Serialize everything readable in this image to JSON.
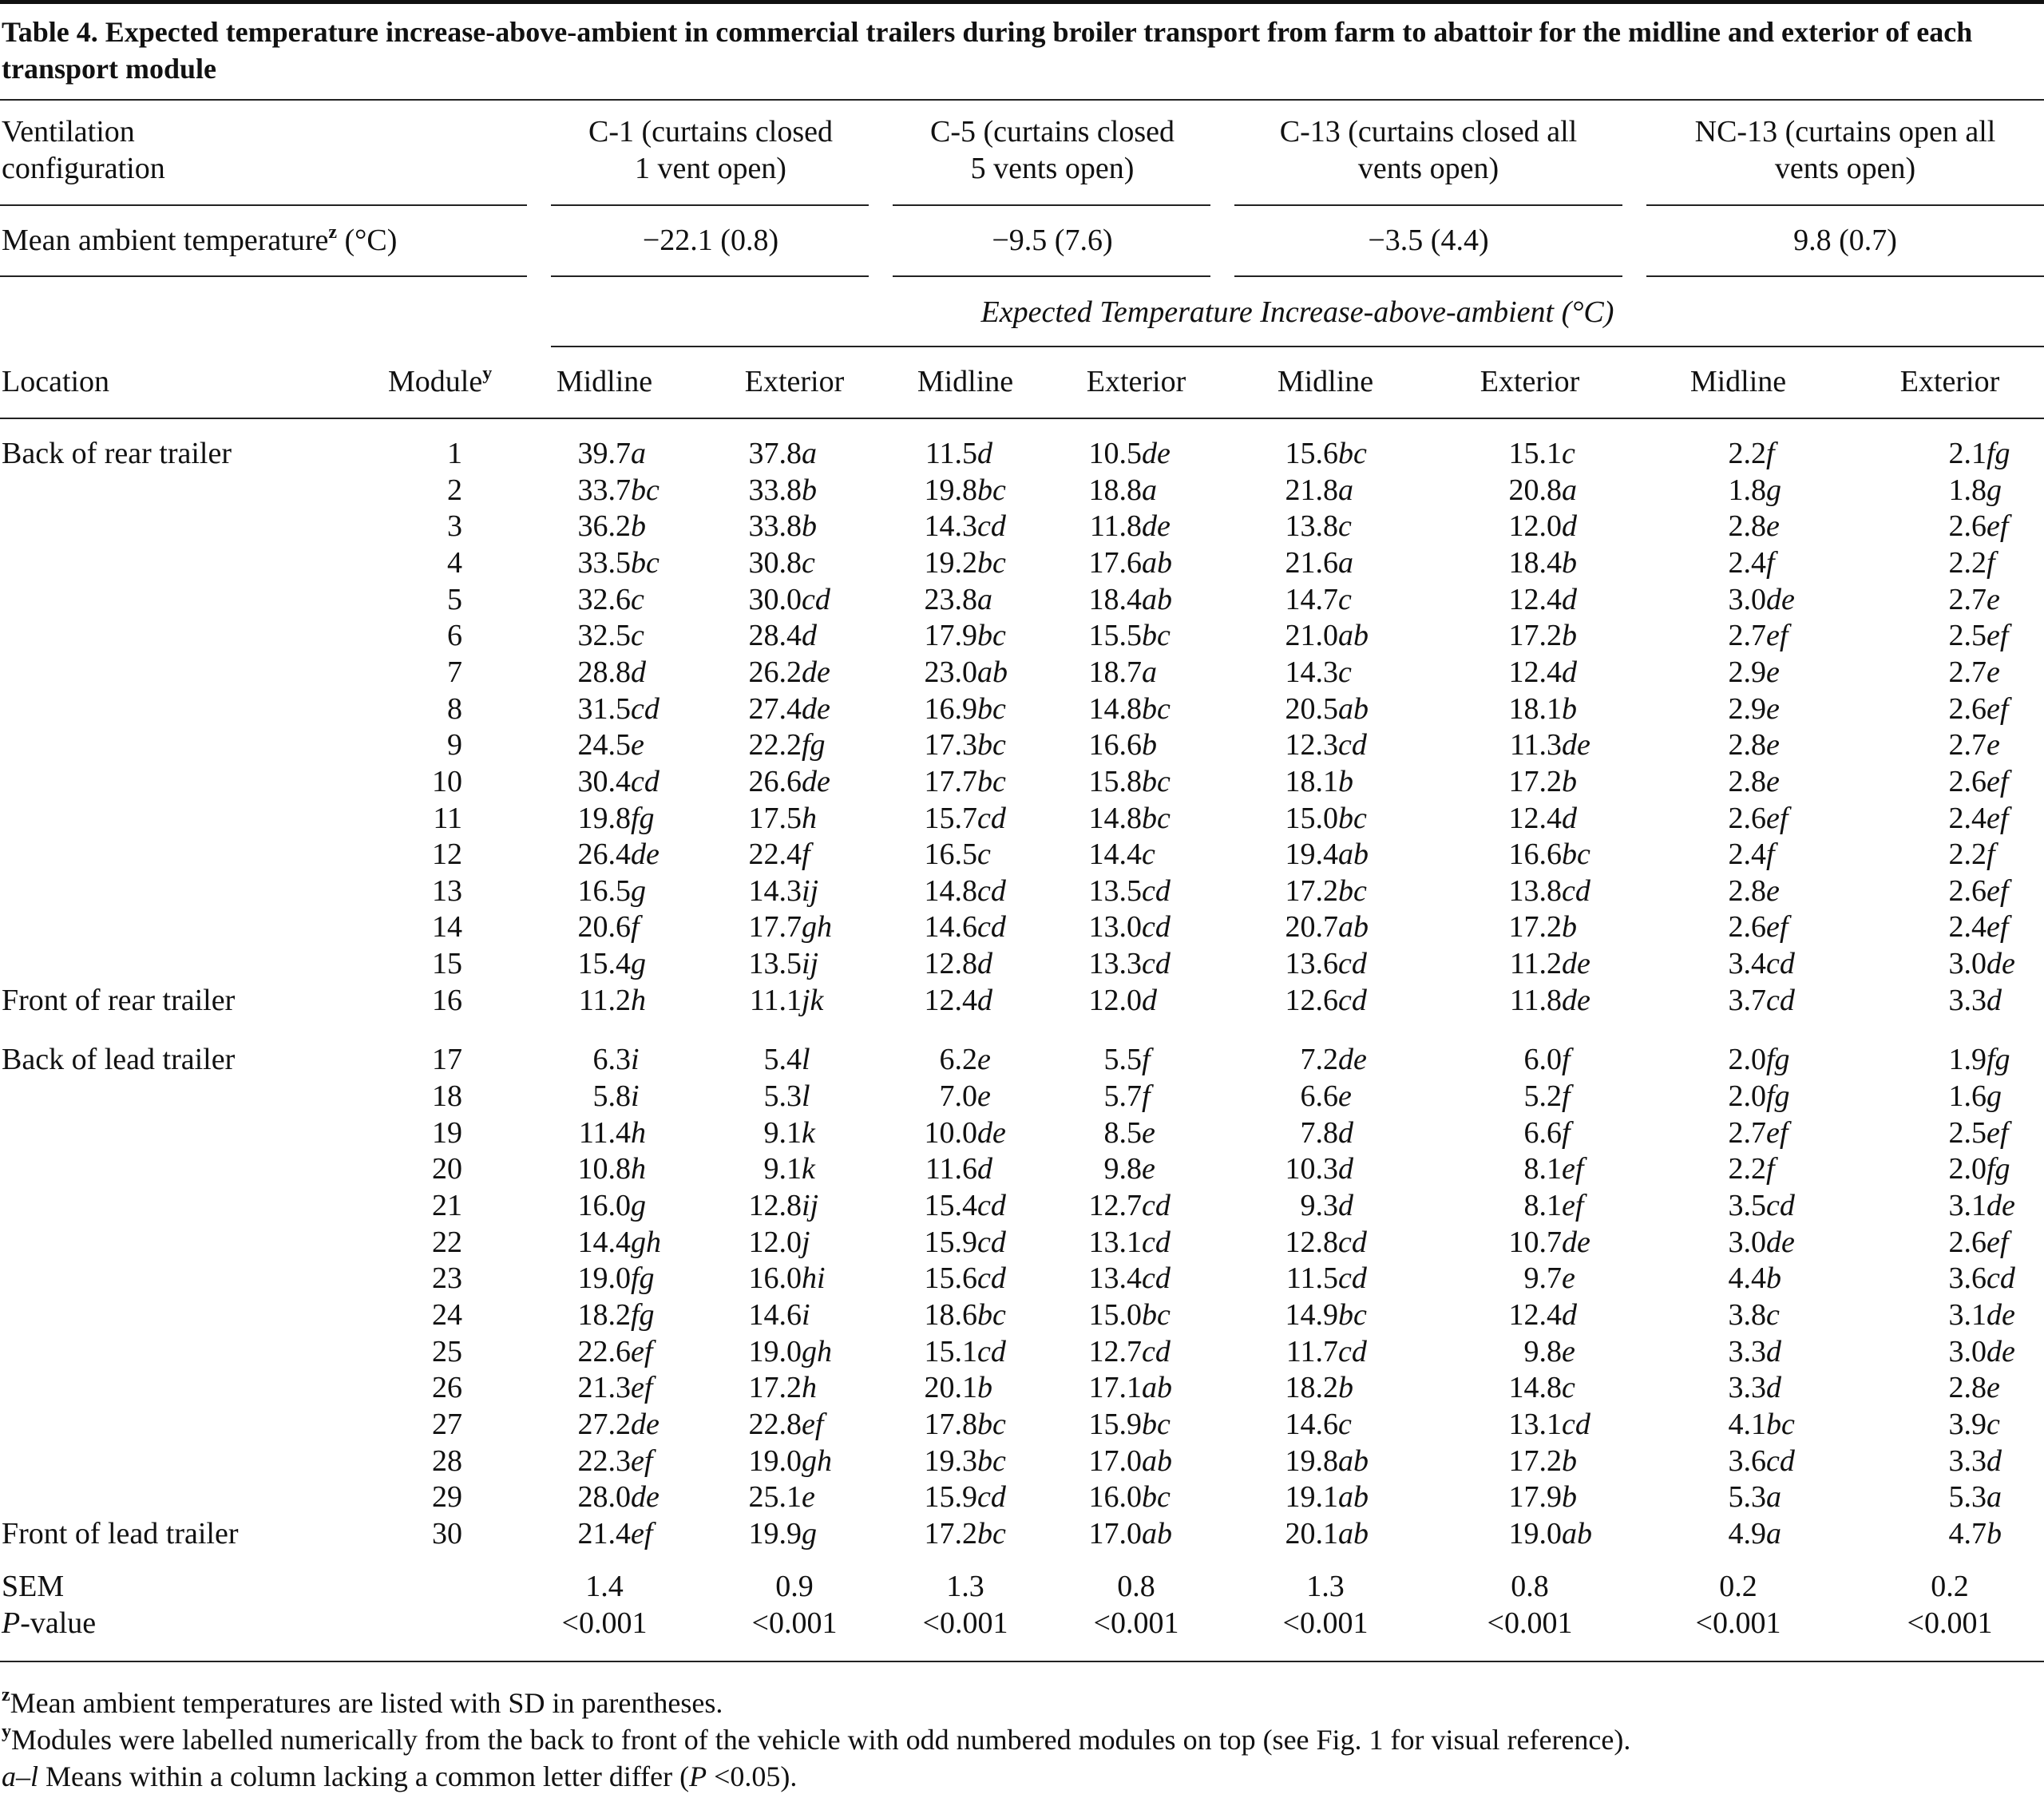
{
  "caption": "Table 4. Expected temperature increase-above-ambient in commercial trailers during broiler transport from farm to abattoir for the midline and exterior of each transport module",
  "header": {
    "ventilation_label": "Ventilation\nconfiguration",
    "configs": [
      "C-1 (curtains closed\n1 vent open)",
      "C-5 (curtains closed\n5 vents open)",
      "C-13 (curtains closed all\nvents open)",
      "NC-13 (curtains open all\nvents open)"
    ],
    "ambient_label": "Mean ambient temperature",
    "ambient_sup": "z",
    "ambient_unit": "(°C)",
    "ambient_values": [
      "−22.1 (0.8)",
      "−9.5 (7.6)",
      "−3.5 (4.4)",
      "9.8 (0.7)"
    ],
    "expected_label": "Expected Temperature Increase-above-ambient (°C)",
    "location_label": "Location",
    "module_label": "Module",
    "module_sup": "y",
    "midline_label": "Midline",
    "exterior_label": "Exterior"
  },
  "groups": [
    {
      "label": "Back of rear trailer",
      "start": 0
    },
    {
      "label": "Front of rear trailer",
      "start": 15
    },
    {
      "label": "Back of lead trailer",
      "start": 16
    },
    {
      "label": "Front of lead trailer",
      "start": 29
    }
  ],
  "rows": [
    {
      "module": "1",
      "cells": [
        [
          "39.7",
          "a"
        ],
        [
          "37.8",
          "a"
        ],
        [
          "11.5",
          "d"
        ],
        [
          "10.5",
          "de"
        ],
        [
          "15.6",
          "bc"
        ],
        [
          "15.1",
          "c"
        ],
        [
          "2.2",
          "f"
        ],
        [
          "2.1",
          "fg"
        ]
      ]
    },
    {
      "module": "2",
      "cells": [
        [
          "33.7",
          "bc"
        ],
        [
          "33.8",
          "b"
        ],
        [
          "19.8",
          "bc"
        ],
        [
          "18.8",
          "a"
        ],
        [
          "21.8",
          "a"
        ],
        [
          "20.8",
          "a"
        ],
        [
          "1.8",
          "g"
        ],
        [
          "1.8",
          "g"
        ]
      ]
    },
    {
      "module": "3",
      "cells": [
        [
          "36.2",
          "b"
        ],
        [
          "33.8",
          "b"
        ],
        [
          "14.3",
          "cd"
        ],
        [
          "11.8",
          "de"
        ],
        [
          "13.8",
          "c"
        ],
        [
          "12.0",
          "d"
        ],
        [
          "2.8",
          "e"
        ],
        [
          "2.6",
          "ef"
        ]
      ]
    },
    {
      "module": "4",
      "cells": [
        [
          "33.5",
          "bc"
        ],
        [
          "30.8",
          "c"
        ],
        [
          "19.2",
          "bc"
        ],
        [
          "17.6",
          "ab"
        ],
        [
          "21.6",
          "a"
        ],
        [
          "18.4",
          "b"
        ],
        [
          "2.4",
          "f"
        ],
        [
          "2.2",
          "f"
        ]
      ]
    },
    {
      "module": "5",
      "cells": [
        [
          "32.6",
          "c"
        ],
        [
          "30.0",
          "cd"
        ],
        [
          "23.8",
          "a"
        ],
        [
          "18.4",
          "ab"
        ],
        [
          "14.7",
          "c"
        ],
        [
          "12.4",
          "d"
        ],
        [
          "3.0",
          "de"
        ],
        [
          "2.7",
          "e"
        ]
      ]
    },
    {
      "module": "6",
      "cells": [
        [
          "32.5",
          "c"
        ],
        [
          "28.4",
          "d"
        ],
        [
          "17.9",
          "bc"
        ],
        [
          "15.5",
          "bc"
        ],
        [
          "21.0",
          "ab"
        ],
        [
          "17.2",
          "b"
        ],
        [
          "2.7",
          "ef"
        ],
        [
          "2.5",
          "ef"
        ]
      ]
    },
    {
      "module": "7",
      "cells": [
        [
          "28.8",
          "d"
        ],
        [
          "26.2",
          "de"
        ],
        [
          "23.0",
          "ab"
        ],
        [
          "18.7",
          "a"
        ],
        [
          "14.3",
          "c"
        ],
        [
          "12.4",
          "d"
        ],
        [
          "2.9",
          "e"
        ],
        [
          "2.7",
          "e"
        ]
      ]
    },
    {
      "module": "8",
      "cells": [
        [
          "31.5",
          "cd"
        ],
        [
          "27.4",
          "de"
        ],
        [
          "16.9",
          "bc"
        ],
        [
          "14.8",
          "bc"
        ],
        [
          "20.5",
          "ab"
        ],
        [
          "18.1",
          "b"
        ],
        [
          "2.9",
          "e"
        ],
        [
          "2.6",
          "ef"
        ]
      ]
    },
    {
      "module": "9",
      "cells": [
        [
          "24.5",
          "e"
        ],
        [
          "22.2",
          "fg"
        ],
        [
          "17.3",
          "bc"
        ],
        [
          "16.6",
          "b"
        ],
        [
          "12.3",
          "cd"
        ],
        [
          "11.3",
          "de"
        ],
        [
          "2.8",
          "e"
        ],
        [
          "2.7",
          "e"
        ]
      ]
    },
    {
      "module": "10",
      "cells": [
        [
          "30.4",
          "cd"
        ],
        [
          "26.6",
          "de"
        ],
        [
          "17.7",
          "bc"
        ],
        [
          "15.8",
          "bc"
        ],
        [
          "18.1",
          "b"
        ],
        [
          "17.2",
          "b"
        ],
        [
          "2.8",
          "e"
        ],
        [
          "2.6",
          "ef"
        ]
      ]
    },
    {
      "module": "11",
      "cells": [
        [
          "19.8",
          "fg"
        ],
        [
          "17.5",
          "h"
        ],
        [
          "15.7",
          "cd"
        ],
        [
          "14.8",
          "bc"
        ],
        [
          "15.0",
          "bc"
        ],
        [
          "12.4",
          "d"
        ],
        [
          "2.6",
          "ef"
        ],
        [
          "2.4",
          "ef"
        ]
      ]
    },
    {
      "module": "12",
      "cells": [
        [
          "26.4",
          "de"
        ],
        [
          "22.4",
          "f"
        ],
        [
          "16.5",
          "c"
        ],
        [
          "14.4",
          "c"
        ],
        [
          "19.4",
          "ab"
        ],
        [
          "16.6",
          "bc"
        ],
        [
          "2.4",
          "f"
        ],
        [
          "2.2",
          "f"
        ]
      ]
    },
    {
      "module": "13",
      "cells": [
        [
          "16.5",
          "g"
        ],
        [
          "14.3",
          "ij"
        ],
        [
          "14.8",
          "cd"
        ],
        [
          "13.5",
          "cd"
        ],
        [
          "17.2",
          "bc"
        ],
        [
          "13.8",
          "cd"
        ],
        [
          "2.8",
          "e"
        ],
        [
          "2.6",
          "ef"
        ]
      ]
    },
    {
      "module": "14",
      "cells": [
        [
          "20.6",
          "f"
        ],
        [
          "17.7",
          "gh"
        ],
        [
          "14.6",
          "cd"
        ],
        [
          "13.0",
          "cd"
        ],
        [
          "20.7",
          "ab"
        ],
        [
          "17.2",
          "b"
        ],
        [
          "2.6",
          "ef"
        ],
        [
          "2.4",
          "ef"
        ]
      ]
    },
    {
      "module": "15",
      "cells": [
        [
          "15.4",
          "g"
        ],
        [
          "13.5",
          "ij"
        ],
        [
          "12.8",
          "d"
        ],
        [
          "13.3",
          "cd"
        ],
        [
          "13.6",
          "cd"
        ],
        [
          "11.2",
          "de"
        ],
        [
          "3.4",
          "cd"
        ],
        [
          "3.0",
          "de"
        ]
      ]
    },
    {
      "module": "16",
      "cells": [
        [
          "11.2",
          "h"
        ],
        [
          "11.1",
          "jk"
        ],
        [
          "12.4",
          "d"
        ],
        [
          "12.0",
          "d"
        ],
        [
          "12.6",
          "cd"
        ],
        [
          "11.8",
          "de"
        ],
        [
          "3.7",
          "cd"
        ],
        [
          "3.3",
          "d"
        ]
      ]
    },
    {
      "module": "17",
      "cells": [
        [
          "6.3",
          "i"
        ],
        [
          "5.4",
          "l"
        ],
        [
          "6.2",
          "e"
        ],
        [
          "5.5",
          "f"
        ],
        [
          "7.2",
          "de"
        ],
        [
          "6.0",
          "f"
        ],
        [
          "2.0",
          "fg"
        ],
        [
          "1.9",
          "fg"
        ]
      ]
    },
    {
      "module": "18",
      "cells": [
        [
          "5.8",
          "i"
        ],
        [
          "5.3",
          "l"
        ],
        [
          "7.0",
          "e"
        ],
        [
          "5.7",
          "f"
        ],
        [
          "6.6",
          "e"
        ],
        [
          "5.2",
          "f"
        ],
        [
          "2.0",
          "fg"
        ],
        [
          "1.6",
          "g"
        ]
      ]
    },
    {
      "module": "19",
      "cells": [
        [
          "11.4",
          "h"
        ],
        [
          "9.1",
          "k"
        ],
        [
          "10.0",
          "de"
        ],
        [
          "8.5",
          "e"
        ],
        [
          "7.8",
          "d"
        ],
        [
          "6.6",
          "f"
        ],
        [
          "2.7",
          "ef"
        ],
        [
          "2.5",
          "ef"
        ]
      ]
    },
    {
      "module": "20",
      "cells": [
        [
          "10.8",
          "h"
        ],
        [
          "9.1",
          "k"
        ],
        [
          "11.6",
          "d"
        ],
        [
          "9.8",
          "e"
        ],
        [
          "10.3",
          "d"
        ],
        [
          "8.1",
          "ef"
        ],
        [
          "2.2",
          "f"
        ],
        [
          "2.0",
          "fg"
        ]
      ]
    },
    {
      "module": "21",
      "cells": [
        [
          "16.0",
          "g"
        ],
        [
          "12.8",
          "ij"
        ],
        [
          "15.4",
          "cd"
        ],
        [
          "12.7",
          "cd"
        ],
        [
          "9.3",
          "d"
        ],
        [
          "8.1",
          "ef"
        ],
        [
          "3.5",
          "cd"
        ],
        [
          "3.1",
          "de"
        ]
      ]
    },
    {
      "module": "22",
      "cells": [
        [
          "14.4",
          "gh"
        ],
        [
          "12.0",
          "j"
        ],
        [
          "15.9",
          "cd"
        ],
        [
          "13.1",
          "cd"
        ],
        [
          "12.8",
          "cd"
        ],
        [
          "10.7",
          "de"
        ],
        [
          "3.0",
          "de"
        ],
        [
          "2.6",
          "ef"
        ]
      ]
    },
    {
      "module": "23",
      "cells": [
        [
          "19.0",
          "fg"
        ],
        [
          "16.0",
          "hi"
        ],
        [
          "15.6",
          "cd"
        ],
        [
          "13.4",
          "cd"
        ],
        [
          "11.5",
          "cd"
        ],
        [
          "9.7",
          "e"
        ],
        [
          "4.4",
          "b"
        ],
        [
          "3.6",
          "cd"
        ]
      ]
    },
    {
      "module": "24",
      "cells": [
        [
          "18.2",
          "fg"
        ],
        [
          "14.6",
          "i"
        ],
        [
          "18.6",
          "bc"
        ],
        [
          "15.0",
          "bc"
        ],
        [
          "14.9",
          "bc"
        ],
        [
          "12.4",
          "d"
        ],
        [
          "3.8",
          "c"
        ],
        [
          "3.1",
          "de"
        ]
      ]
    },
    {
      "module": "25",
      "cells": [
        [
          "22.6",
          "ef"
        ],
        [
          "19.0",
          "gh"
        ],
        [
          "15.1",
          "cd"
        ],
        [
          "12.7",
          "cd"
        ],
        [
          "11.7",
          "cd"
        ],
        [
          "9.8",
          "e"
        ],
        [
          "3.3",
          "d"
        ],
        [
          "3.0",
          "de"
        ]
      ]
    },
    {
      "module": "26",
      "cells": [
        [
          "21.3",
          "ef"
        ],
        [
          "17.2",
          "h"
        ],
        [
          "20.1",
          "b"
        ],
        [
          "17.1",
          "ab"
        ],
        [
          "18.2",
          "b"
        ],
        [
          "14.8",
          "c"
        ],
        [
          "3.3",
          "d"
        ],
        [
          "2.8",
          "e"
        ]
      ]
    },
    {
      "module": "27",
      "cells": [
        [
          "27.2",
          "de"
        ],
        [
          "22.8",
          "ef"
        ],
        [
          "17.8",
          "bc"
        ],
        [
          "15.9",
          "bc"
        ],
        [
          "14.6",
          "c"
        ],
        [
          "13.1",
          "cd"
        ],
        [
          "4.1",
          "bc"
        ],
        [
          "3.9",
          "c"
        ]
      ]
    },
    {
      "module": "28",
      "cells": [
        [
          "22.3",
          "ef"
        ],
        [
          "19.0",
          "gh"
        ],
        [
          "19.3",
          "bc"
        ],
        [
          "17.0",
          "ab"
        ],
        [
          "19.8",
          "ab"
        ],
        [
          "17.2",
          "b"
        ],
        [
          "3.6",
          "cd"
        ],
        [
          "3.3",
          "d"
        ]
      ]
    },
    {
      "module": "29",
      "cells": [
        [
          "28.0",
          "de"
        ],
        [
          "25.1",
          "e"
        ],
        [
          "15.9",
          "cd"
        ],
        [
          "16.0",
          "bc"
        ],
        [
          "19.1",
          "ab"
        ],
        [
          "17.9",
          "b"
        ],
        [
          "5.3",
          "a"
        ],
        [
          "5.3",
          "a"
        ]
      ]
    },
    {
      "module": "30",
      "cells": [
        [
          "21.4",
          "ef"
        ],
        [
          "19.9",
          "g"
        ],
        [
          "17.2",
          "bc"
        ],
        [
          "17.0",
          "ab"
        ],
        [
          "20.1",
          "ab"
        ],
        [
          "19.0",
          "ab"
        ],
        [
          "4.9",
          "a"
        ],
        [
          "4.7",
          "b"
        ]
      ]
    }
  ],
  "sem": {
    "label": "SEM",
    "values": [
      "1.4",
      "0.9",
      "1.3",
      "0.8",
      "1.3",
      "0.8",
      "0.2",
      "0.2"
    ]
  },
  "pvalue": {
    "label_italic": "P",
    "label_rest": "-value",
    "values": [
      "<0.001",
      "<0.001",
      "<0.001",
      "<0.001",
      "<0.001",
      "<0.001",
      "<0.001",
      "<0.001"
    ]
  },
  "footnotes": {
    "z_sup": "z",
    "z_text": "Mean ambient temperatures are listed with SD in parentheses.",
    "y_sup": "y",
    "y_text": "Modules were labelled numerically from the back to front of the vehicle with odd numbered modules on top (see Fig. 1 for visual reference).",
    "al_italic": "a–l",
    "al_text": " Means within a column lacking a common letter differ (",
    "al_p": "P",
    "al_end": " <0.05)."
  }
}
